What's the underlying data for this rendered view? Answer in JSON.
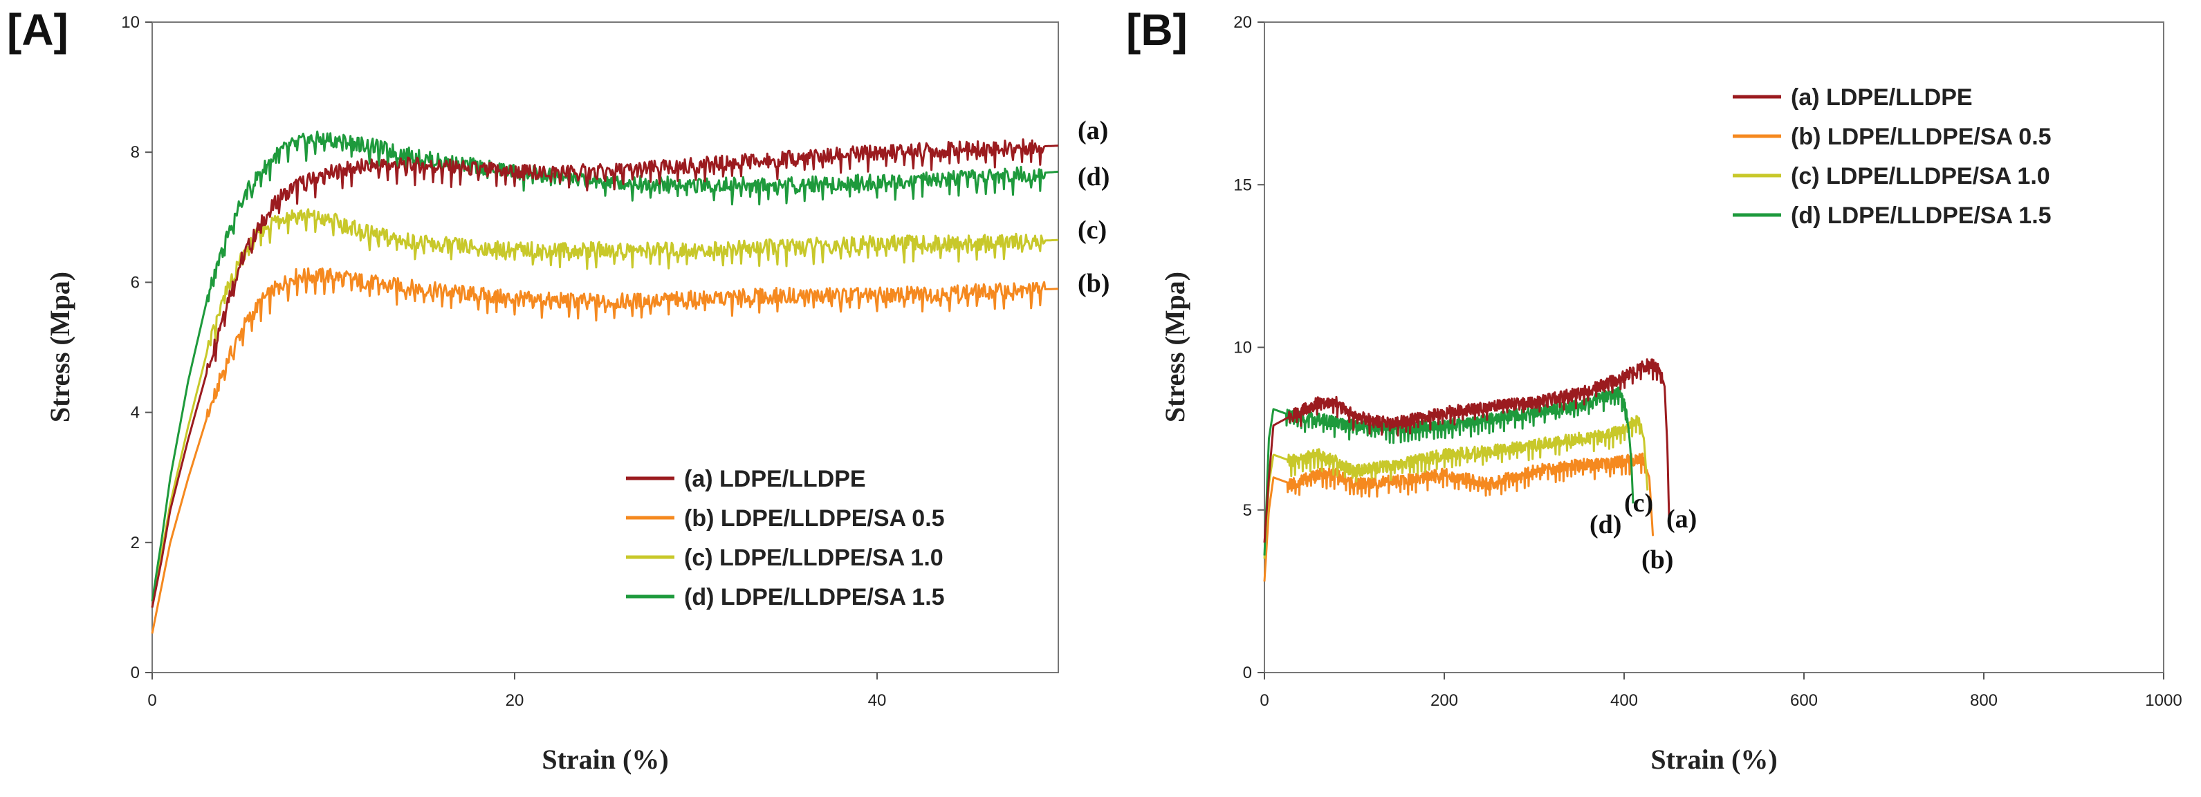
{
  "chart_data": [
    {
      "type": "line",
      "panel": "A",
      "label": "[A]",
      "xlabel": "Strain (%)",
      "ylabel": "Stress (Mpa)",
      "xlim": [
        0,
        50
      ],
      "ylim": [
        0,
        10
      ],
      "xticks": [
        0,
        20,
        40
      ],
      "yticks": [
        0,
        2,
        4,
        6,
        8,
        10
      ],
      "legend_position": "bottom-right",
      "series": [
        {
          "key": "a",
          "name": "(a) LDPE/LLDPE",
          "color": "#9b1b1f",
          "x": [
            0,
            0.5,
            1,
            2,
            3,
            4,
            5,
            6,
            7,
            8,
            10,
            12,
            15,
            20,
            25,
            30,
            35,
            40,
            45,
            50
          ],
          "y": [
            1.0,
            1.7,
            2.5,
            3.6,
            4.6,
            5.6,
            6.4,
            6.9,
            7.3,
            7.5,
            7.7,
            7.8,
            7.8,
            7.7,
            7.7,
            7.8,
            7.9,
            8.0,
            8.05,
            8.1
          ],
          "end_label": "(a)"
        },
        {
          "key": "b",
          "name": "(b) LDPE/LLDPE/SA 0.5",
          "color": "#f5891f",
          "x": [
            0,
            0.5,
            1,
            2,
            3,
            4,
            5,
            6,
            7,
            8,
            10,
            12,
            15,
            20,
            25,
            30,
            35,
            40,
            45,
            50
          ],
          "y": [
            0.6,
            1.3,
            2.0,
            3.0,
            3.9,
            4.7,
            5.3,
            5.7,
            5.95,
            6.1,
            6.1,
            6.0,
            5.9,
            5.75,
            5.7,
            5.75,
            5.8,
            5.8,
            5.85,
            5.9
          ],
          "end_label": "(b)"
        },
        {
          "key": "c",
          "name": "(c) LDPE/LLDPE/SA 1.0",
          "color": "#c8c82a",
          "x": [
            0,
            0.5,
            1,
            2,
            3,
            4,
            5,
            6,
            7,
            8,
            10,
            12,
            15,
            20,
            25,
            30,
            35,
            40,
            45,
            50
          ],
          "y": [
            1.0,
            1.8,
            2.6,
            3.8,
            4.9,
            5.8,
            6.4,
            6.8,
            7.0,
            7.05,
            6.95,
            6.75,
            6.6,
            6.5,
            6.5,
            6.5,
            6.55,
            6.6,
            6.6,
            6.65
          ],
          "end_label": "(c)"
        },
        {
          "key": "d",
          "name": "(d) LDPE/LLDPE/SA 1.5",
          "color": "#1e9a3c",
          "x": [
            0,
            0.5,
            1,
            2,
            3,
            4,
            5,
            6,
            7,
            8,
            9,
            10,
            12,
            15,
            20,
            25,
            30,
            35,
            40,
            45,
            50
          ],
          "y": [
            1.1,
            2.0,
            3.0,
            4.5,
            5.7,
            6.6,
            7.3,
            7.7,
            8.0,
            8.15,
            8.2,
            8.2,
            8.1,
            7.9,
            7.7,
            7.55,
            7.5,
            7.5,
            7.55,
            7.6,
            7.7
          ],
          "end_label": "(d)"
        }
      ]
    },
    {
      "type": "line",
      "panel": "B",
      "label": "[B]",
      "xlabel": "Strain (%)",
      "ylabel": "Stress (Mpa)",
      "xlim": [
        0,
        1000
      ],
      "ylim": [
        0,
        20
      ],
      "xticks": [
        0,
        200,
        400,
        600,
        800,
        1000
      ],
      "yticks": [
        0,
        5,
        10,
        15,
        20
      ],
      "legend_position": "top-right",
      "series": [
        {
          "key": "a",
          "name": "(a) LDPE/LLDPE",
          "color": "#9b1b1f",
          "x": [
            0,
            5,
            10,
            30,
            60,
            80,
            100,
            130,
            150,
            200,
            250,
            300,
            350,
            380,
            400,
            420,
            430,
            440,
            445,
            448,
            450
          ],
          "y": [
            4.0,
            6.0,
            7.6,
            7.9,
            8.3,
            8.3,
            7.9,
            7.7,
            7.7,
            8.0,
            8.2,
            8.3,
            8.6,
            8.9,
            9.1,
            9.4,
            9.5,
            9.3,
            8.8,
            7.0,
            4.8
          ],
          "end_label": "(a)"
        },
        {
          "key": "b",
          "name": "(b) LDPE/LLDPE/SA 0.5",
          "color": "#f5891f",
          "x": [
            0,
            5,
            10,
            30,
            60,
            80,
            100,
            150,
            200,
            250,
            300,
            350,
            380,
            400,
            420,
            428,
            432
          ],
          "y": [
            2.8,
            5.0,
            6.0,
            5.8,
            6.1,
            6.1,
            5.8,
            5.9,
            6.1,
            5.8,
            6.2,
            6.4,
            6.4,
            6.5,
            6.6,
            6.0,
            4.2
          ],
          "end_label": "(b)"
        },
        {
          "key": "c",
          "name": "(c) LDPE/LLDPE/SA 1.0",
          "color": "#c8c82a",
          "x": [
            0,
            5,
            10,
            30,
            60,
            80,
            100,
            150,
            200,
            250,
            300,
            350,
            380,
            400,
            415,
            422,
            426
          ],
          "y": [
            3.5,
            5.8,
            6.7,
            6.5,
            6.7,
            6.5,
            6.2,
            6.4,
            6.7,
            6.8,
            7.0,
            7.2,
            7.3,
            7.5,
            7.8,
            7.2,
            5.6
          ],
          "end_label": "(c)"
        },
        {
          "key": "d",
          "name": "(d) LDPE/LLDPE/SA 1.5",
          "color": "#1e9a3c",
          "x": [
            0,
            5,
            10,
            30,
            60,
            100,
            150,
            200,
            250,
            300,
            350,
            380,
            395,
            400,
            405,
            408,
            410
          ],
          "y": [
            3.6,
            7.2,
            8.1,
            7.9,
            7.8,
            7.6,
            7.5,
            7.6,
            7.8,
            8.0,
            8.2,
            8.5,
            8.6,
            8.3,
            7.5,
            6.5,
            5.2
          ],
          "end_label": "(d)"
        }
      ]
    }
  ]
}
